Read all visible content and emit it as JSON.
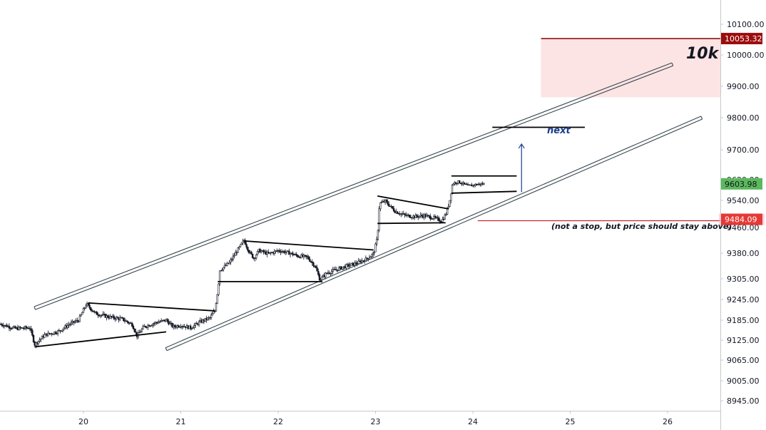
{
  "chart_data": {
    "type": "candlestick",
    "title": "",
    "xlabel": "",
    "ylabel": "",
    "x_ticks": [
      "20",
      "21",
      "22",
      "23",
      "24",
      "25",
      "26"
    ],
    "y_ticks": [
      "10100.00",
      "10000.00",
      "9900.00",
      "9800.00",
      "9700.00",
      "9620.00",
      "9540.00",
      "9460.00",
      "9380.00",
      "9305.00",
      "9245.00",
      "9185.00",
      "9125.00",
      "9065.00",
      "9005.00",
      "8945.00"
    ],
    "ylim": [
      8930,
      10150
    ],
    "xlim": [
      19.15,
      26.55
    ],
    "grid": false,
    "price_tags": [
      {
        "label": "10053.32",
        "value": 10053.32,
        "color": "#9b0d0d"
      },
      {
        "label": "9603.98",
        "value": 9603.98,
        "color": "#5cb85c"
      },
      {
        "label": "9484.09",
        "value": 9484.09,
        "color": "#e53935"
      }
    ],
    "annotations": {
      "target": "10k",
      "next": "next",
      "support_note": "(not a stop, but price should stay above)"
    },
    "target_zone": {
      "x_start": 24.7,
      "x_end": 26.55,
      "y_low": 9865,
      "y_high": 10053.32,
      "color": "#fde4e4"
    },
    "channel": {
      "upper": [
        [
          19.5,
          9220
        ],
        [
          26.05,
          9970
        ]
      ],
      "lower": [
        [
          20.85,
          9098
        ],
        [
          26.35,
          9800
        ]
      ]
    },
    "pattern_lines": [
      [
        [
          19.5,
          9105
        ],
        [
          20.85,
          9150
        ]
      ],
      [
        [
          20.05,
          9235
        ],
        [
          21.35,
          9212
        ]
      ],
      [
        [
          21.38,
          9297
        ],
        [
          22.45,
          9297
        ]
      ],
      [
        [
          21.65,
          9418
        ],
        [
          22.98,
          9390
        ]
      ],
      [
        [
          23.02,
          9557
        ],
        [
          23.75,
          9515
        ]
      ],
      [
        [
          23.02,
          9472
        ],
        [
          23.72,
          9474
        ]
      ],
      [
        [
          23.78,
          9630
        ],
        [
          24.45,
          9630
        ]
      ],
      [
        [
          23.78,
          9568
        ],
        [
          24.45,
          9575
        ]
      ],
      [
        [
          24.2,
          9770
        ],
        [
          25.15,
          9770
        ]
      ],
      [
        [
          24.05,
          9480
        ],
        [
          26.55,
          9480
        ]
      ]
    ],
    "arrow": {
      "x": 24.5,
      "from": 9572,
      "to": 9718,
      "color": "#1a3d8f"
    },
    "price_path": [
      [
        19.15,
        9173
      ],
      [
        19.3,
        9160
      ],
      [
        19.45,
        9162
      ],
      [
        19.5,
        9112
      ],
      [
        19.6,
        9140
      ],
      [
        19.75,
        9152
      ],
      [
        19.85,
        9172
      ],
      [
        19.95,
        9185
      ],
      [
        20.03,
        9232
      ],
      [
        20.12,
        9205
      ],
      [
        20.25,
        9195
      ],
      [
        20.4,
        9188
      ],
      [
        20.5,
        9172
      ],
      [
        20.55,
        9138
      ],
      [
        20.62,
        9165
      ],
      [
        20.75,
        9178
      ],
      [
        20.85,
        9185
      ],
      [
        20.92,
        9165
      ],
      [
        21.0,
        9170
      ],
      [
        21.1,
        9162
      ],
      [
        21.2,
        9180
      ],
      [
        21.3,
        9192
      ],
      [
        21.35,
        9212
      ],
      [
        21.38,
        9272
      ],
      [
        21.4,
        9330
      ],
      [
        21.5,
        9352
      ],
      [
        21.58,
        9388
      ],
      [
        21.65,
        9420
      ],
      [
        21.7,
        9385
      ],
      [
        21.75,
        9365
      ],
      [
        21.8,
        9388
      ],
      [
        21.9,
        9378
      ],
      [
        22.0,
        9388
      ],
      [
        22.1,
        9382
      ],
      [
        22.2,
        9372
      ],
      [
        22.3,
        9368
      ],
      [
        22.38,
        9342
      ],
      [
        22.43,
        9302
      ],
      [
        22.5,
        9322
      ],
      [
        22.6,
        9332
      ],
      [
        22.7,
        9342
      ],
      [
        22.8,
        9350
      ],
      [
        22.9,
        9362
      ],
      [
        22.98,
        9378
      ],
      [
        23.02,
        9430
      ],
      [
        23.04,
        9530
      ],
      [
        23.1,
        9538
      ],
      [
        23.2,
        9508
      ],
      [
        23.3,
        9496
      ],
      [
        23.4,
        9492
      ],
      [
        23.5,
        9495
      ],
      [
        23.6,
        9488
      ],
      [
        23.68,
        9480
      ],
      [
        23.72,
        9497
      ],
      [
        23.76,
        9535
      ],
      [
        23.79,
        9605
      ],
      [
        23.85,
        9612
      ],
      [
        23.95,
        9596
      ],
      [
        24.05,
        9602
      ],
      [
        24.12,
        9604
      ]
    ]
  }
}
